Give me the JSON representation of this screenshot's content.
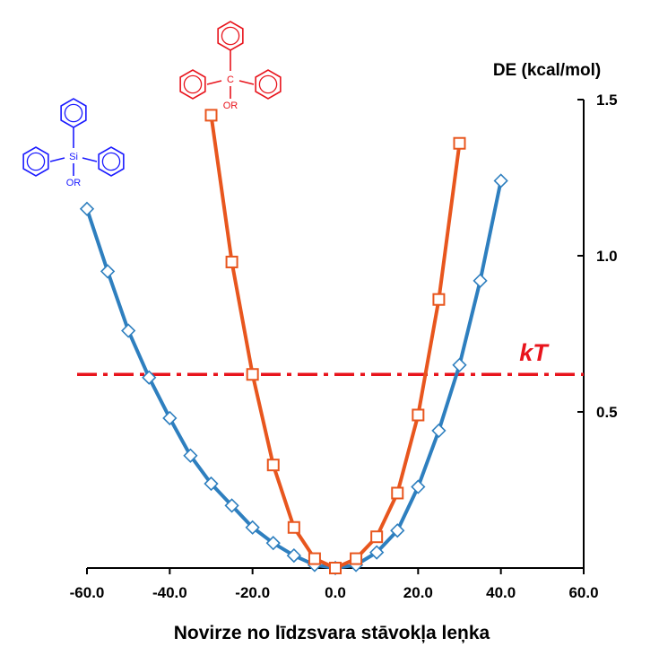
{
  "chart_data": {
    "type": "line",
    "xlabel": "Novirze no līdzsvara stāvokļa leņka",
    "ylabel": "DE (kcal/mol)",
    "xlim": [
      -60,
      60
    ],
    "ylim": [
      0,
      1.5
    ],
    "x_ticks": [
      -60,
      -40,
      -20,
      0,
      20,
      40,
      60
    ],
    "x_tick_labels": [
      "-60.0",
      "-40.0",
      "-20.0",
      "0.0",
      "20.0",
      "40.0",
      "60.0"
    ],
    "y_ticks": [
      0.5,
      1.0,
      1.5
    ],
    "y_tick_labels": [
      "0.5",
      "1.0",
      "1.5"
    ],
    "grid": false,
    "series": [
      {
        "color": "#2e7fbf",
        "marker": "diamond",
        "x": [
          -60,
          -55,
          -50,
          -45,
          -40,
          -35,
          -30,
          -25,
          -20,
          -15,
          -10,
          -5,
          0,
          5,
          10,
          15,
          20,
          25,
          30,
          35,
          40
        ],
        "y": [
          1.15,
          0.95,
          0.76,
          0.61,
          0.48,
          0.36,
          0.27,
          0.2,
          0.13,
          0.08,
          0.04,
          0.01,
          0.0,
          0.01,
          0.05,
          0.12,
          0.26,
          0.44,
          0.65,
          0.92,
          1.24
        ]
      },
      {
        "color": "#e8561e",
        "marker": "square",
        "x": [
          -30,
          -25,
          -20,
          -15,
          -10,
          -5,
          0,
          5,
          10,
          15,
          20,
          25,
          30
        ],
        "y": [
          1.45,
          0.98,
          0.62,
          0.33,
          0.13,
          0.03,
          0.0,
          0.03,
          0.1,
          0.24,
          0.49,
          0.86,
          1.36
        ]
      }
    ],
    "reference_line": {
      "label": "kT",
      "y": 0.62,
      "color": "#e8141c",
      "style": "dash-dot"
    },
    "molecules": [
      {
        "center_atom": "Si",
        "substituent": "OR",
        "color": "#1a1aff"
      },
      {
        "center_atom": "C",
        "substituent": "OR",
        "color": "#e8141c"
      }
    ]
  }
}
